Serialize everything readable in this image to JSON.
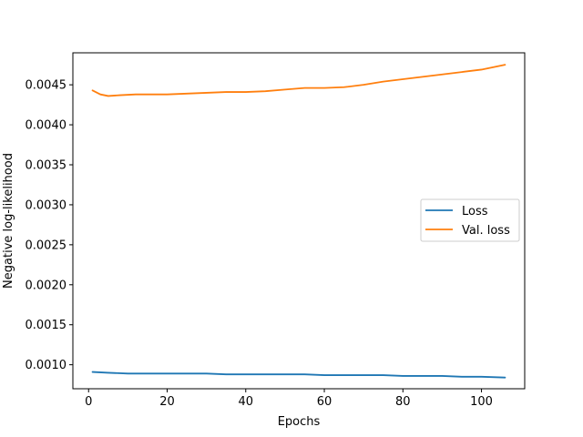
{
  "chart_data": {
    "type": "line",
    "xlabel": "Epochs",
    "ylabel": "Negative log-likelihood",
    "xlim": [
      -4,
      111
    ],
    "ylim": [
      0.0007,
      0.0049
    ],
    "xticks": [
      0,
      20,
      40,
      60,
      80,
      100
    ],
    "yticks": [
      0.001,
      0.0015,
      0.002,
      0.0025,
      0.003,
      0.0035,
      0.004,
      0.0045
    ],
    "ytick_labels": [
      "0.0010",
      "0.0015",
      "0.0020",
      "0.0025",
      "0.0030",
      "0.0035",
      "0.0040",
      "0.0045"
    ],
    "legend": "center-right",
    "grid": false,
    "series": [
      {
        "name": "Loss",
        "color": "#1f77b4",
        "x": [
          1,
          5,
          10,
          15,
          20,
          25,
          30,
          35,
          40,
          45,
          50,
          55,
          60,
          65,
          70,
          75,
          80,
          85,
          90,
          95,
          100,
          106
        ],
        "values": [
          0.00091,
          0.0009,
          0.00089,
          0.00089,
          0.00089,
          0.00089,
          0.00089,
          0.00088,
          0.00088,
          0.00088,
          0.00088,
          0.00088,
          0.00087,
          0.00087,
          0.00087,
          0.00087,
          0.00086,
          0.00086,
          0.00086,
          0.00085,
          0.00085,
          0.00084
        ]
      },
      {
        "name": "Val. loss",
        "color": "#ff7f0e",
        "x": [
          1,
          3,
          5,
          8,
          12,
          16,
          20,
          25,
          30,
          35,
          40,
          45,
          50,
          55,
          60,
          65,
          70,
          75,
          80,
          85,
          90,
          95,
          100,
          106
        ],
        "values": [
          0.00443,
          0.00438,
          0.00436,
          0.00437,
          0.00438,
          0.00438,
          0.00438,
          0.00439,
          0.0044,
          0.00441,
          0.00441,
          0.00442,
          0.00444,
          0.00446,
          0.00446,
          0.00447,
          0.0045,
          0.00454,
          0.00457,
          0.0046,
          0.00463,
          0.00466,
          0.00469,
          0.00475
        ]
      }
    ]
  }
}
